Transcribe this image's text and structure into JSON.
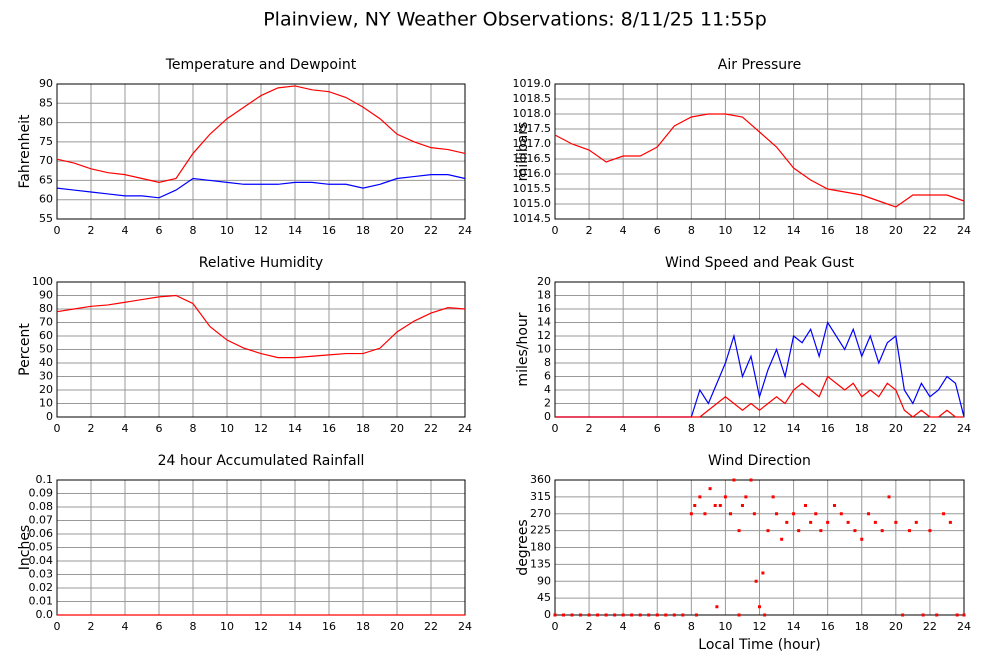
{
  "title": "Plainview, NY Weather Observations: 8/11/25 11:55p",
  "chart_data": [
    {
      "type": "line",
      "title": "Temperature and Dewpoint",
      "ylabel": "Fahrenheit",
      "x": [
        0,
        1,
        2,
        3,
        4,
        5,
        6,
        7,
        8,
        9,
        10,
        11,
        12,
        13,
        14,
        15,
        16,
        17,
        18,
        19,
        20,
        21,
        22,
        23,
        24
      ],
      "series": [
        {
          "color": "#ff0000",
          "values": [
            70.5,
            69.5,
            68,
            67,
            66.5,
            65.5,
            64.5,
            65.5,
            72,
            77,
            81,
            84,
            87,
            89,
            89.5,
            88.5,
            88,
            86.5,
            84,
            81,
            77,
            75,
            73.5,
            73,
            72
          ]
        },
        {
          "color": "#0000ff",
          "values": [
            63,
            62.5,
            62,
            61.5,
            61,
            61,
            60.5,
            62.5,
            65.5,
            65,
            64.5,
            64,
            64,
            64,
            64.5,
            64.5,
            64,
            64,
            63,
            64,
            65.5,
            66,
            66.5,
            66.5,
            65.5
          ]
        }
      ],
      "xlim": [
        0,
        24
      ],
      "xticks": [
        0,
        2,
        4,
        6,
        8,
        10,
        12,
        14,
        16,
        18,
        20,
        22,
        24
      ],
      "ylim": [
        55,
        90
      ],
      "yticks": [
        55,
        60,
        65,
        70,
        75,
        80,
        85,
        90
      ],
      "grid": true
    },
    {
      "type": "line",
      "title": "Air Pressure",
      "ylabel": "millibars",
      "x": [
        0,
        1,
        2,
        3,
        4,
        5,
        6,
        7,
        8,
        9,
        10,
        11,
        12,
        13,
        14,
        15,
        16,
        17,
        18,
        19,
        20,
        21,
        22,
        23,
        24
      ],
      "series": [
        {
          "color": "#ff0000",
          "values": [
            1017.3,
            1017.0,
            1016.8,
            1016.4,
            1016.6,
            1016.6,
            1016.9,
            1017.6,
            1017.9,
            1018.0,
            1018.0,
            1017.9,
            1017.4,
            1016.9,
            1016.2,
            1015.8,
            1015.5,
            1015.4,
            1015.3,
            1015.1,
            1014.9,
            1015.3,
            1015.3,
            1015.3,
            1015.1
          ]
        }
      ],
      "xlim": [
        0,
        24
      ],
      "xticks": [
        0,
        2,
        4,
        6,
        8,
        10,
        12,
        14,
        16,
        18,
        20,
        22,
        24
      ],
      "ylim": [
        1014.5,
        1019
      ],
      "yticks": [
        1014.5,
        {
          "value": 1015,
          "label": "1015.0"
        },
        1015.5,
        {
          "value": 1016,
          "label": "1016.0"
        },
        1016.5,
        {
          "value": 1017,
          "label": "1017.0"
        },
        1017.5,
        {
          "value": 1018,
          "label": "1018.0"
        },
        1018.5,
        {
          "value": 1019,
          "label": "1019.0"
        }
      ],
      "grid": true
    },
    {
      "type": "line",
      "title": "Relative Humidity",
      "ylabel": "Percent",
      "x": [
        0,
        1,
        2,
        3,
        4,
        5,
        6,
        7,
        8,
        9,
        10,
        11,
        12,
        13,
        14,
        15,
        16,
        17,
        18,
        19,
        20,
        21,
        22,
        23,
        24
      ],
      "series": [
        {
          "color": "#ff0000",
          "values": [
            78,
            80,
            82,
            83,
            85,
            87,
            89,
            90,
            84,
            67,
            57,
            51,
            47,
            44,
            44,
            45,
            46,
            47,
            47,
            51,
            63,
            71,
            77,
            81,
            80
          ]
        }
      ],
      "xlim": [
        0,
        24
      ],
      "xticks": [
        0,
        2,
        4,
        6,
        8,
        10,
        12,
        14,
        16,
        18,
        20,
        22,
        24
      ],
      "ylim": [
        0,
        100
      ],
      "yticks": [
        0,
        10,
        20,
        30,
        40,
        50,
        60,
        70,
        80,
        90,
        100
      ],
      "grid": true
    },
    {
      "type": "line",
      "title": "Wind Speed and Peak Gust",
      "ylabel": "miles/hour",
      "x": [
        0,
        0.5,
        1,
        1.5,
        2,
        2.5,
        3,
        3.5,
        4,
        4.5,
        5,
        5.5,
        6,
        6.5,
        7,
        7.5,
        8,
        8.5,
        9,
        9.5,
        10,
        10.5,
        11,
        11.5,
        12,
        12.5,
        13,
        13.5,
        14,
        14.5,
        15,
        15.5,
        16,
        16.5,
        17,
        17.5,
        18,
        18.5,
        19,
        19.5,
        20,
        20.5,
        21,
        21.5,
        22,
        22.5,
        23,
        23.5,
        24
      ],
      "series": [
        {
          "color": "#0000ff",
          "values": [
            0,
            0,
            0,
            0,
            0,
            0,
            0,
            0,
            0,
            0,
            0,
            0,
            0,
            0,
            0,
            0,
            0,
            4,
            2,
            5,
            8,
            12,
            6,
            9,
            3,
            7,
            10,
            6,
            12,
            11,
            13,
            9,
            14,
            12,
            10,
            13,
            9,
            12,
            8,
            11,
            12,
            4,
            2,
            5,
            3,
            4,
            6,
            5,
            0
          ]
        },
        {
          "color": "#ff0000",
          "values": [
            0,
            0,
            0,
            0,
            0,
            0,
            0,
            0,
            0,
            0,
            0,
            0,
            0,
            0,
            0,
            0,
            0,
            0,
            1,
            2,
            3,
            2,
            1,
            2,
            1,
            2,
            3,
            2,
            4,
            5,
            4,
            3,
            6,
            5,
            4,
            5,
            3,
            4,
            3,
            5,
            4,
            1,
            0,
            1,
            0,
            0,
            1,
            0,
            0
          ]
        }
      ],
      "xlim": [
        0,
        24
      ],
      "xticks": [
        0,
        2,
        4,
        6,
        8,
        10,
        12,
        14,
        16,
        18,
        20,
        22,
        24
      ],
      "ylim": [
        0,
        20
      ],
      "yticks": [
        0,
        2,
        4,
        6,
        8,
        10,
        12,
        14,
        16,
        18,
        20
      ],
      "grid": true
    },
    {
      "type": "line",
      "title": "24 hour Accumulated Rainfall",
      "ylabel": "Inches",
      "x": [
        0,
        24
      ],
      "series": [
        {
          "color": "#ff0000",
          "values": [
            0,
            0
          ]
        }
      ],
      "xlim": [
        0,
        24
      ],
      "xticks": [
        0,
        2,
        4,
        6,
        8,
        10,
        12,
        14,
        16,
        18,
        20,
        22,
        24
      ],
      "ylim": [
        0,
        0.1
      ],
      "yticks": [
        {
          "value": 0,
          "label": "0.0"
        },
        0.01,
        0.02,
        0.03,
        0.04,
        0.05,
        0.06,
        0.07,
        0.08,
        0.09,
        0.1
      ],
      "grid": true
    },
    {
      "type": "scatter",
      "title": "Wind Direction",
      "ylabel": "degrees",
      "xlabel": "Local Time (hour)",
      "x": [
        0,
        0.5,
        1,
        1.5,
        2,
        2.5,
        3,
        3.5,
        4,
        4.5,
        5,
        5.5,
        6,
        6.5,
        7,
        7.5,
        8,
        8.2,
        8.5,
        8.8,
        9.1,
        9.4,
        9.7,
        10,
        10.3,
        10.5,
        10.8,
        11,
        11.2,
        11.5,
        11.7,
        12,
        12.2,
        12.5,
        12.8,
        13,
        13.3,
        13.6,
        14,
        14.3,
        14.7,
        15,
        15.3,
        15.6,
        16,
        16.4,
        16.8,
        17.2,
        17.6,
        18,
        18.4,
        18.8,
        19.2,
        19.6,
        20,
        20.4,
        20.8,
        21.2,
        21.6,
        22,
        22.4,
        22.8,
        23.2,
        23.6,
        24,
        8.3,
        9.5,
        10.8,
        11.8,
        12.3
      ],
      "series": [
        {
          "color": "#ff0000",
          "values": [
            0,
            0,
            0,
            0,
            0,
            0,
            0,
            0,
            0,
            0,
            0,
            0,
            0,
            0,
            0,
            0,
            270,
            292,
            315,
            270,
            337,
            292,
            292,
            315,
            270,
            360,
            225,
            292,
            315,
            360,
            270,
            22,
            112,
            225,
            315,
            270,
            202,
            247,
            270,
            225,
            292,
            247,
            270,
            225,
            247,
            292,
            270,
            247,
            225,
            202,
            270,
            247,
            225,
            315,
            247,
            0,
            225,
            247,
            0,
            225,
            0,
            270,
            247,
            0,
            0,
            0,
            22,
            0,
            90,
            0
          ]
        }
      ],
      "xlim": [
        0,
        24
      ],
      "xticks": [
        0,
        2,
        4,
        6,
        8,
        10,
        12,
        14,
        16,
        18,
        20,
        22,
        24
      ],
      "ylim": [
        0,
        360
      ],
      "yticks": [
        0,
        45,
        90,
        135,
        180,
        225,
        270,
        315,
        360
      ],
      "grid": true
    }
  ]
}
